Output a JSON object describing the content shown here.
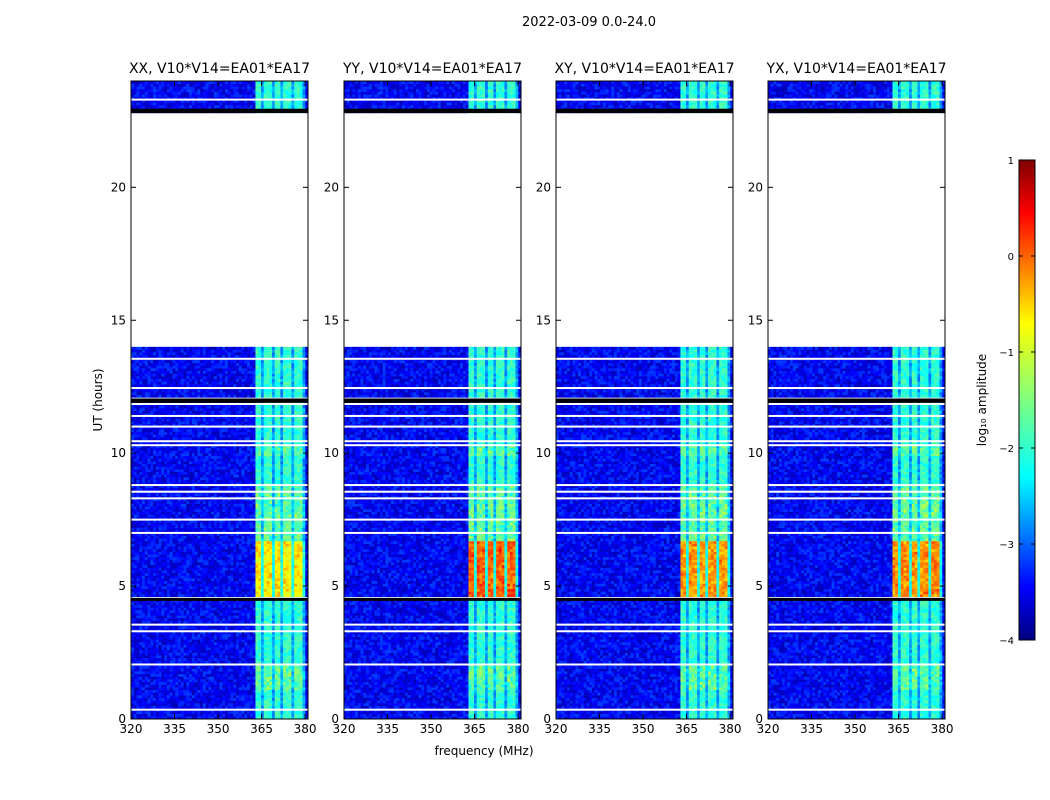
{
  "suptitle": "2022-03-09 0.0-24.0",
  "chart_data": {
    "type": "heatmap",
    "shared": {
      "xlabel": "frequency (MHz)",
      "ylabel": "UT (hours)",
      "xlim": [
        320,
        381
      ],
      "ylim": [
        0,
        24
      ],
      "xticks": [
        320,
        335,
        350,
        365,
        380
      ],
      "yticks": [
        0,
        5,
        10,
        15,
        20
      ],
      "colorbar": {
        "label": "log₁₀ amplitude",
        "range": [
          -4,
          1
        ],
        "ticks": [
          -4,
          -3,
          -2,
          -1,
          0,
          1
        ],
        "colormap": "jet"
      },
      "data_gap_hours": [
        14.0,
        22.8
      ],
      "strong_signal_hours": [
        4.6,
        6.6
      ],
      "signal_band_mhz": [
        363,
        380
      ]
    },
    "panels": [
      {
        "title": "XX, V10*V14=EA01*EA17",
        "peak_log_amplitude": -0.6
      },
      {
        "title": "YY, V10*V14=EA01*EA17",
        "peak_log_amplitude": 0.1
      },
      {
        "title": "XY, V10*V14=EA01*EA17",
        "peak_log_amplitude": -0.2
      },
      {
        "title": "YX, V10*V14=EA01*EA17",
        "peak_log_amplitude": -0.1
      }
    ]
  }
}
